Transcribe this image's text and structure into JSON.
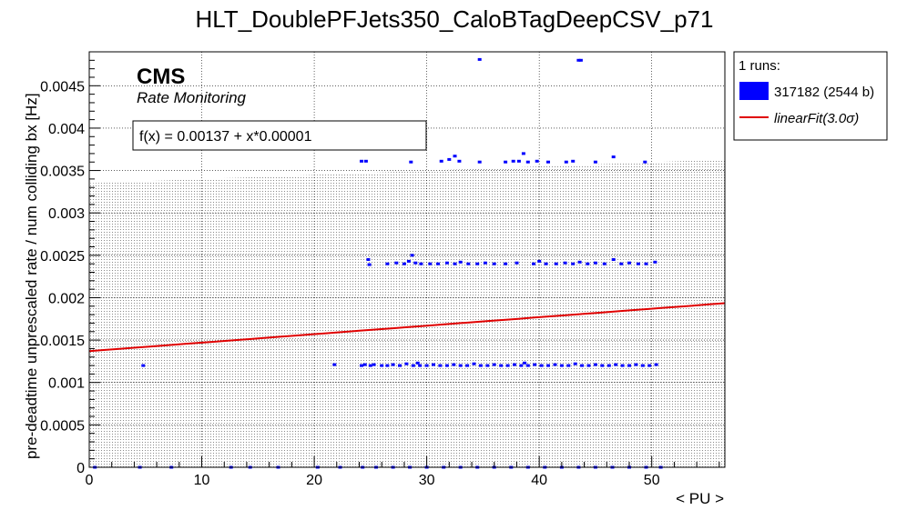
{
  "chart_data": {
    "type": "scatter",
    "title": "HLT_DoublePFJets350_CaloBTagDeepCSV_p71",
    "xlabel": "< PU >",
    "ylabel": "pre-deadtime unprescaled rate / num colliding bx [Hz]",
    "xlim": [
      0,
      56.5
    ],
    "ylim": [
      0,
      0.0049
    ],
    "xticks": [
      0,
      10,
      20,
      30,
      40,
      50
    ],
    "xtick_labels": [
      "0",
      "10",
      "20",
      "30",
      "40",
      "50"
    ],
    "yticks": [
      0,
      0.0005,
      0.001,
      0.0015,
      0.002,
      0.0025,
      0.003,
      0.0035,
      0.004,
      0.0045
    ],
    "ytick_labels": [
      "0",
      "0.0005",
      "0.001",
      "0.0015",
      "0.002",
      "0.0025",
      "0.003",
      "0.0035",
      "0.004",
      "0.0045"
    ],
    "grid": true,
    "legend_position": "outside-right",
    "colors": {
      "series": "#0000ff",
      "fit": "#e00000",
      "band": "#999999"
    },
    "annotations": {
      "cms": "CMS",
      "subtitle": "Rate Monitoring",
      "fit_formula": "f(x) = 0.00137 + x*0.00001"
    },
    "legend": {
      "header": "1 runs:",
      "series_label": "317182 (2544 b)",
      "fit_label": "linearFit(3.0σ)"
    },
    "fit": {
      "intercept": 0.00137,
      "slope": 1e-05,
      "x_range": [
        0,
        56.5
      ]
    },
    "band": {
      "lower": 0,
      "upper_start": 0.00335,
      "upper_end": 0.00363,
      "x_range": [
        0,
        56.5
      ]
    },
    "series": [
      {
        "name": "317182 (2544 b)",
        "points": [
          [
            4.8,
            0.0012
          ],
          [
            21.8,
            0.00121
          ],
          [
            24.2,
            0.0012
          ],
          [
            24.5,
            0.00121
          ],
          [
            25.0,
            0.0012
          ],
          [
            25.3,
            0.00121
          ],
          [
            26.0,
            0.0012
          ],
          [
            26.5,
            0.0012
          ],
          [
            27.0,
            0.00121
          ],
          [
            27.6,
            0.0012
          ],
          [
            28.2,
            0.00122
          ],
          [
            28.8,
            0.0012
          ],
          [
            29.4,
            0.0012
          ],
          [
            30.0,
            0.0012
          ],
          [
            30.6,
            0.00121
          ],
          [
            31.2,
            0.0012
          ],
          [
            31.8,
            0.0012
          ],
          [
            32.4,
            0.00121
          ],
          [
            33.0,
            0.0012
          ],
          [
            33.6,
            0.0012
          ],
          [
            34.2,
            0.00122
          ],
          [
            34.8,
            0.0012
          ],
          [
            35.4,
            0.0012
          ],
          [
            36.0,
            0.00121
          ],
          [
            36.6,
            0.0012
          ],
          [
            37.2,
            0.0012
          ],
          [
            37.8,
            0.00121
          ],
          [
            38.4,
            0.0012
          ],
          [
            39.0,
            0.0012
          ],
          [
            39.6,
            0.00121
          ],
          [
            40.2,
            0.0012
          ],
          [
            40.8,
            0.0012
          ],
          [
            41.4,
            0.00121
          ],
          [
            42.0,
            0.0012
          ],
          [
            42.6,
            0.0012
          ],
          [
            43.2,
            0.00122
          ],
          [
            43.8,
            0.0012
          ],
          [
            44.4,
            0.0012
          ],
          [
            45.0,
            0.00121
          ],
          [
            45.6,
            0.0012
          ],
          [
            46.2,
            0.0012
          ],
          [
            46.8,
            0.00121
          ],
          [
            47.4,
            0.0012
          ],
          [
            48.0,
            0.0012
          ],
          [
            48.6,
            0.00121
          ],
          [
            49.2,
            0.0012
          ],
          [
            49.8,
            0.0012
          ],
          [
            50.4,
            0.00121
          ],
          [
            29.2,
            0.00123
          ],
          [
            38.7,
            0.00123
          ],
          [
            24.8,
            0.00245
          ],
          [
            24.9,
            0.00239
          ],
          [
            26.5,
            0.0024
          ],
          [
            27.3,
            0.00241
          ],
          [
            28.0,
            0.0024
          ],
          [
            28.4,
            0.00243
          ],
          [
            28.7,
            0.0025
          ],
          [
            29.0,
            0.00241
          ],
          [
            29.5,
            0.0024
          ],
          [
            30.3,
            0.0024
          ],
          [
            31.0,
            0.0024
          ],
          [
            31.8,
            0.00241
          ],
          [
            32.5,
            0.0024
          ],
          [
            33.0,
            0.00242
          ],
          [
            33.7,
            0.0024
          ],
          [
            34.5,
            0.0024
          ],
          [
            35.2,
            0.00241
          ],
          [
            36.0,
            0.0024
          ],
          [
            37.0,
            0.0024
          ],
          [
            38.0,
            0.00241
          ],
          [
            39.5,
            0.0024
          ],
          [
            40.0,
            0.00243
          ],
          [
            40.6,
            0.0024
          ],
          [
            41.5,
            0.0024
          ],
          [
            42.3,
            0.00241
          ],
          [
            43.0,
            0.0024
          ],
          [
            43.6,
            0.00242
          ],
          [
            44.3,
            0.0024
          ],
          [
            45.0,
            0.00241
          ],
          [
            45.8,
            0.0024
          ],
          [
            46.6,
            0.00245
          ],
          [
            47.3,
            0.0024
          ],
          [
            48.0,
            0.00241
          ],
          [
            48.8,
            0.0024
          ],
          [
            49.5,
            0.0024
          ],
          [
            50.3,
            0.00242
          ],
          [
            24.2,
            0.00361
          ],
          [
            24.6,
            0.00361
          ],
          [
            28.6,
            0.0036
          ],
          [
            31.3,
            0.00361
          ],
          [
            32.0,
            0.00363
          ],
          [
            32.5,
            0.00367
          ],
          [
            32.9,
            0.00361
          ],
          [
            34.7,
            0.0036
          ],
          [
            37.0,
            0.0036
          ],
          [
            37.7,
            0.00361
          ],
          [
            38.2,
            0.00361
          ],
          [
            38.6,
            0.0037
          ],
          [
            39.0,
            0.0036
          ],
          [
            39.8,
            0.00361
          ],
          [
            40.8,
            0.0036
          ],
          [
            42.4,
            0.0036
          ],
          [
            43.0,
            0.00361
          ],
          [
            45.0,
            0.0036
          ],
          [
            46.6,
            0.00366
          ],
          [
            49.4,
            0.0036
          ],
          [
            34.7,
            0.00481
          ],
          [
            43.5,
            0.0048
          ],
          [
            43.7,
            0.0048
          ],
          [
            0.5,
            0.0
          ],
          [
            4.5,
            0.0
          ],
          [
            7.3,
            0.0
          ],
          [
            12.6,
            0.0
          ],
          [
            14.3,
            0.0
          ],
          [
            16.8,
            0.0
          ],
          [
            20.3,
            0.0
          ],
          [
            22.3,
            0.0
          ],
          [
            24.3,
            0.0
          ],
          [
            25.5,
            0.0
          ],
          [
            27.0,
            0.0
          ],
          [
            28.5,
            0.0
          ],
          [
            30.0,
            0.0
          ],
          [
            31.5,
            0.0
          ],
          [
            33.0,
            0.0
          ],
          [
            34.5,
            0.0
          ],
          [
            36.0,
            0.0
          ],
          [
            37.5,
            0.0
          ],
          [
            39.0,
            0.0
          ],
          [
            40.5,
            0.0
          ],
          [
            42.0,
            0.0
          ],
          [
            43.5,
            0.0
          ],
          [
            45.0,
            0.0
          ],
          [
            46.5,
            0.0
          ],
          [
            48.0,
            0.0
          ],
          [
            49.5,
            0.0
          ],
          [
            50.8,
            0.0
          ]
        ]
      }
    ]
  }
}
